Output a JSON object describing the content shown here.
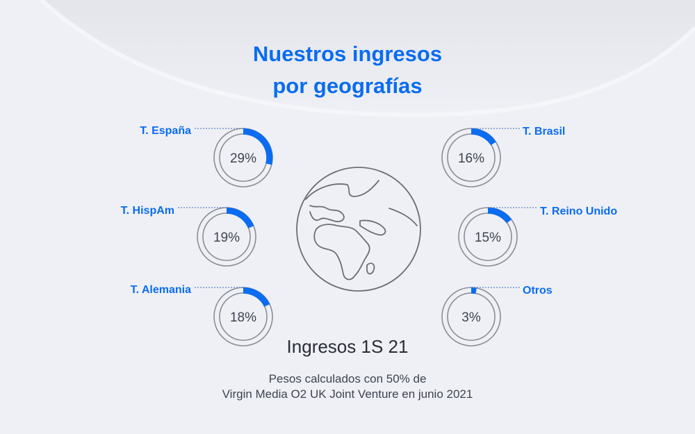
{
  "title_line1": "Nuestros ingresos",
  "title_line2": "por geografías",
  "subtitle": "Ingresos 1S 21",
  "note_line1": "Pesos calculados con 50% de",
  "note_line2": "Virgin Media O2 UK Joint Venture en junio 2021",
  "colors": {
    "accent": "#0a6cf0",
    "text": "#3f4350",
    "ring": "#8a8d96",
    "background": "#eef0f5"
  },
  "icons": {
    "center": "globe-icon"
  },
  "chart_data": {
    "type": "pie",
    "series": [
      {
        "category": "T. España",
        "value": 29,
        "label": "29%"
      },
      {
        "category": "T. HispAm",
        "value": 19,
        "label": "19%"
      },
      {
        "category": "T. Alemania",
        "value": 18,
        "label": "18%"
      },
      {
        "category": "T. Brasil",
        "value": 16,
        "label": "16%"
      },
      {
        "category": "T. Reino Unido",
        "value": 15,
        "label": "15%"
      },
      {
        "category": "Otros",
        "value": 3,
        "label": "3%"
      }
    ]
  }
}
